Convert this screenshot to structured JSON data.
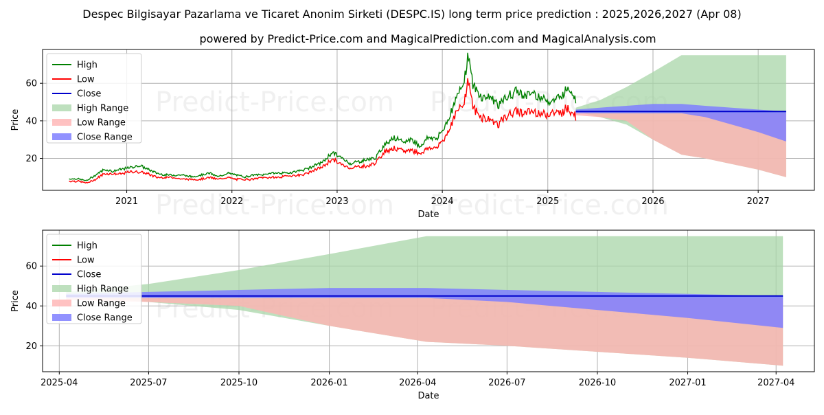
{
  "title": "Despec Bilgisayar Pazarlama ve Ticaret Anonim Sirketi (DESPC.IS) long term price prediction : 2025,2026,2027 (Apr 08)",
  "subtitle": "powered by Predict-Price.com and MagicalPrediction.com and MagicalAnalysis.com",
  "watermark": "Predict-Price.com",
  "colors": {
    "high": "#008000",
    "low": "#ff0000",
    "close": "#0000cc",
    "high_range": "#a8d5a8",
    "low_range": "#ffb3b3",
    "close_range": "#7f7fff"
  },
  "chart_data": [
    {
      "type": "line",
      "xlabel": "Date",
      "ylabel": "Price",
      "xlim": [
        "2020-03-15",
        "2027-07-15"
      ],
      "ylim": [
        3,
        78
      ],
      "yticks": [
        20,
        40,
        60
      ],
      "xticks": [
        "2021",
        "2022",
        "2023",
        "2024",
        "2025",
        "2026",
        "2027"
      ],
      "grid": true,
      "legend": "top-left",
      "legend_entries": [
        "High",
        "Low",
        "Close",
        "High Range",
        "Low Range",
        "Close Range"
      ],
      "history": {
        "dates": [
          "2020-06-15",
          "2020-07-15",
          "2020-08-15",
          "2020-09-15",
          "2020-10-15",
          "2020-11-15",
          "2020-12-15",
          "2021-01-15",
          "2021-02-15",
          "2021-03-15",
          "2021-04-15",
          "2021-05-15",
          "2021-06-15",
          "2021-07-15",
          "2021-08-15",
          "2021-09-15",
          "2021-10-15",
          "2021-11-15",
          "2021-12-15",
          "2022-01-15",
          "2022-02-15",
          "2022-03-15",
          "2022-04-15",
          "2022-05-15",
          "2022-06-15",
          "2022-07-15",
          "2022-08-15",
          "2022-09-15",
          "2022-10-15",
          "2022-11-15",
          "2022-12-15",
          "2023-01-15",
          "2023-02-15",
          "2023-03-15",
          "2023-04-15",
          "2023-05-15",
          "2023-06-15",
          "2023-07-15",
          "2023-08-15",
          "2023-09-15",
          "2023-10-15",
          "2023-11-15",
          "2023-12-15",
          "2024-01-15",
          "2024-02-15",
          "2024-03-01",
          "2024-03-15",
          "2024-04-01",
          "2024-04-15",
          "2024-05-15",
          "2024-06-15",
          "2024-07-15",
          "2024-08-15",
          "2024-09-15",
          "2024-10-15",
          "2024-11-15",
          "2024-12-15",
          "2025-01-15",
          "2025-02-15",
          "2025-03-15",
          "2025-04-08"
        ],
        "high": [
          9,
          9,
          8,
          11,
          14,
          13,
          14,
          15,
          16,
          14,
          12,
          11,
          11,
          11,
          10,
          11,
          12,
          10,
          12,
          11,
          10,
          11,
          11,
          12,
          12,
          12,
          13,
          14,
          16,
          18,
          23,
          20,
          17,
          18,
          19,
          20,
          27,
          31,
          28,
          30,
          26,
          31,
          30,
          38,
          50,
          55,
          60,
          75,
          58,
          52,
          52,
          48,
          52,
          55,
          53,
          54,
          51,
          50,
          52,
          58,
          50
        ],
        "low": [
          8,
          8,
          7,
          9,
          12,
          12,
          12,
          13,
          13,
          12,
          10,
          10,
          10,
          9,
          9,
          9,
          10,
          9,
          10,
          9,
          9,
          9,
          10,
          10,
          10,
          11,
          11,
          12,
          14,
          16,
          20,
          17,
          15,
          16,
          16,
          18,
          24,
          26,
          24,
          25,
          23,
          26,
          26,
          33,
          44,
          47,
          50,
          64,
          48,
          43,
          41,
          39,
          44,
          46,
          45,
          46,
          44,
          45,
          45,
          48,
          43
        ],
        "close": [
          8.5,
          8.5,
          7.5,
          10,
          13,
          12.5,
          13,
          14,
          14.5,
          13,
          11,
          10.5,
          10.5,
          10,
          9.5,
          10,
          11,
          9.5,
          11,
          10,
          9.5,
          10,
          10.5,
          11,
          11,
          11.5,
          12,
          13,
          15,
          17,
          21.5,
          18.5,
          16,
          17,
          17.5,
          19,
          25.5,
          28.5,
          26,
          27.5,
          24.5,
          28.5,
          28,
          35.5,
          47,
          51,
          55,
          69,
          53,
          47.5,
          46.5,
          43.5,
          48,
          50.5,
          49,
          50,
          47.5,
          47.5,
          48.5,
          53,
          46
        ]
      },
      "forecast": {
        "dates": [
          "2025-04-08",
          "2025-07-01",
          "2025-10-01",
          "2026-01-01",
          "2026-04-10",
          "2026-07-01",
          "2026-10-01",
          "2027-01-01",
          "2027-04-08"
        ],
        "high_range": [
          [
            45,
            47
          ],
          [
            42,
            51
          ],
          [
            38,
            58
          ],
          [
            30,
            66
          ],
          [
            22,
            75
          ],
          [
            20,
            75
          ],
          [
            17,
            75
          ],
          [
            14,
            75
          ],
          [
            10,
            75
          ]
        ],
        "low_range": [
          [
            43,
            45
          ],
          [
            42,
            44
          ],
          [
            40,
            44
          ],
          [
            30,
            44
          ],
          [
            22,
            44
          ],
          [
            20,
            44
          ],
          [
            17,
            44
          ],
          [
            14,
            44
          ],
          [
            10,
            44
          ]
        ],
        "close_range": [
          [
            44,
            46
          ],
          [
            44,
            47
          ],
          [
            44,
            48
          ],
          [
            44,
            49
          ],
          [
            44,
            49
          ],
          [
            42,
            48
          ],
          [
            38,
            47
          ],
          [
            34,
            46
          ],
          [
            29,
            45
          ]
        ],
        "close": [
          45,
          45,
          45,
          45,
          45,
          45,
          45,
          45,
          45
        ]
      }
    },
    {
      "type": "line",
      "xlabel": "Date",
      "ylabel": "Price",
      "xlim": [
        "2025-03-15",
        "2027-05-10"
      ],
      "ylim": [
        7,
        78
      ],
      "yticks": [
        20,
        40,
        60
      ],
      "xticks": [
        "2025-04",
        "2025-07",
        "2025-10",
        "2026-01",
        "2026-04",
        "2026-07",
        "2026-10",
        "2027-01",
        "2027-04"
      ],
      "grid": true,
      "legend": "top-left",
      "legend_entries": [
        "High",
        "Low",
        "Close",
        "High Range",
        "Low Range",
        "Close Range"
      ]
    }
  ]
}
